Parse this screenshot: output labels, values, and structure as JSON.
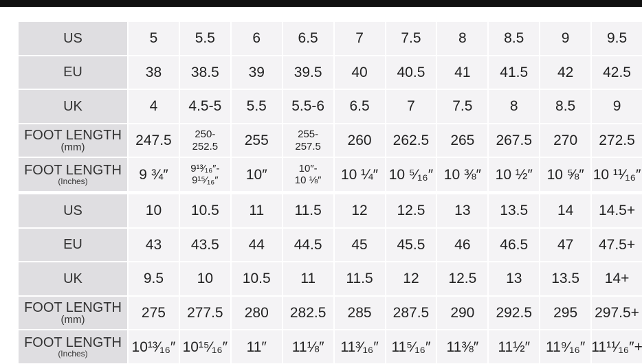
{
  "tables": [
    {
      "rows": [
        {
          "label": [
            "US"
          ],
          "cells": [
            "5",
            "5.5",
            "6",
            "6.5",
            "7",
            "7.5",
            "8",
            "8.5",
            "9",
            "9.5"
          ]
        },
        {
          "label": [
            "EU"
          ],
          "cells": [
            "38",
            "38.5",
            "39",
            "39.5",
            "40",
            "40.5",
            "41",
            "41.5",
            "42",
            "42.5"
          ]
        },
        {
          "label": [
            "UK"
          ],
          "cells": [
            "4",
            "4.5-5",
            "5.5",
            "5.5-6",
            "6.5",
            "7",
            "7.5",
            "8",
            "8.5",
            "9"
          ]
        },
        {
          "label": [
            "FOOT LENGTH",
            "(mm)"
          ],
          "cells": [
            "247.5",
            [
              "250-",
              "252.5"
            ],
            "255",
            [
              "255-",
              "257.5"
            ],
            "260",
            "262.5",
            "265",
            "267.5",
            "270",
            "272.5"
          ]
        },
        {
          "label": [
            "FOOT LENGTH",
            "(Inches)"
          ],
          "cells": [
            "9 ¾″",
            [
              "9¹³⁄₁₆″-",
              "9¹⁵⁄₁₆″"
            ],
            "10″",
            [
              "10″-",
              "10 ⅛″"
            ],
            "10 ¼″",
            "10 ⁵⁄₁₆″",
            "10 ⅜″",
            "10 ½″",
            "10 ⅝″",
            "10 ¹¹⁄₁₆″"
          ]
        }
      ]
    },
    {
      "rows": [
        {
          "label": [
            "US"
          ],
          "cells": [
            "10",
            "10.5",
            "11",
            "11.5",
            "12",
            "12.5",
            "13",
            "13.5",
            "14",
            "14.5+"
          ]
        },
        {
          "label": [
            "EU"
          ],
          "cells": [
            "43",
            "43.5",
            "44",
            "44.5",
            "45",
            "45.5",
            "46",
            "46.5",
            "47",
            "47.5+"
          ]
        },
        {
          "label": [
            "UK"
          ],
          "cells": [
            "9.5",
            "10",
            "10.5",
            "11",
            "11.5",
            "12",
            "12.5",
            "13",
            "13.5",
            "14+"
          ]
        },
        {
          "label": [
            "FOOT LENGTH",
            "(mm)"
          ],
          "cells": [
            "275",
            "277.5",
            "280",
            "282.5",
            "285",
            "287.5",
            "290",
            "292.5",
            "295",
            "297.5+"
          ]
        },
        {
          "label": [
            "FOOT LENGTH",
            "(Inches)"
          ],
          "cells": [
            "10¹³⁄₁₆″",
            "10¹⁵⁄₁₆″",
            "11″",
            "11⅛″",
            "11³⁄₁₆″",
            "11⁵⁄₁₆″",
            "11⅜″",
            "11½″",
            "11⁹⁄₁₆″",
            "11¹¹⁄₁₆″+"
          ]
        }
      ]
    }
  ]
}
